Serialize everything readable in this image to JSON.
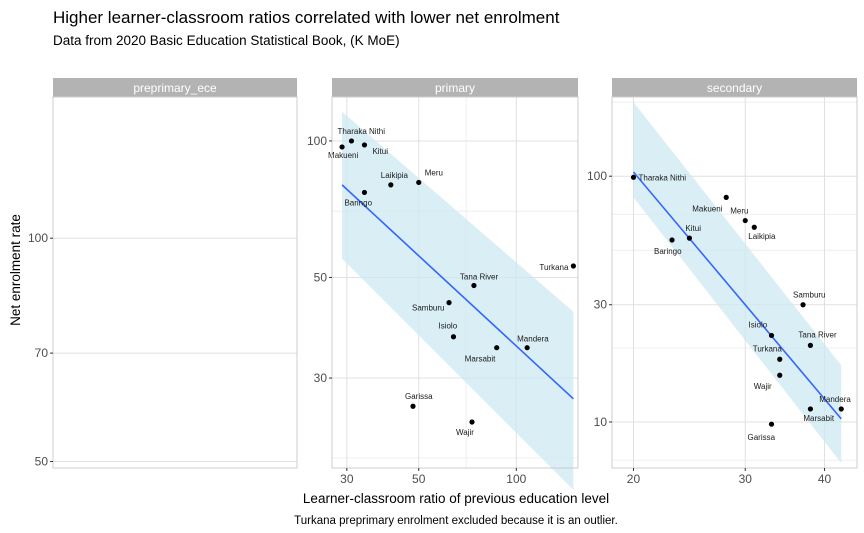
{
  "title": "Higher learner-classroom ratios correlated with lower net enrolment",
  "subtitle": "Data from 2020 Basic Education Statistical Book, (K MoE)",
  "caption": "Turkana preprimary enrolment excluded because it is an outlier.",
  "colors": {
    "fit_line": "#3366ff",
    "ribbon": "#cde8f3",
    "strip": "#b3b3b3",
    "grid": "#e0e0e0",
    "panel_border": "#cccccc",
    "point": "#000000"
  },
  "chart_data": {
    "type": "scatter",
    "xlabel": "Learner-classroom ratio of previous education level",
    "ylabel": "Net enrolment rate",
    "y_scale": "log",
    "facets": [
      {
        "name": "preprimary_ece",
        "xlim": [
          0,
          1
        ],
        "ylim": [
          49,
          155
        ],
        "x_ticks": [],
        "y_ticks": [
          50,
          70,
          100
        ],
        "points": [],
        "fit": null
      },
      {
        "name": "primary",
        "xlim": [
          27,
          155
        ],
        "ylim": [
          19,
          125
        ],
        "x_ticks": [
          30,
          50,
          100
        ],
        "y_ticks": [
          30,
          50,
          100
        ],
        "points": [
          {
            "label": "Tharaka Nithi",
            "x": 31,
            "y": 100
          },
          {
            "label": "Makueni",
            "x": 29,
            "y": 97
          },
          {
            "label": "Kitui",
            "x": 34,
            "y": 98
          },
          {
            "label": "Meru",
            "x": 50,
            "y": 81
          },
          {
            "label": "Laikipia",
            "x": 41,
            "y": 80
          },
          {
            "label": "Baringo",
            "x": 34,
            "y": 77
          },
          {
            "label": "Tana River",
            "x": 74,
            "y": 48
          },
          {
            "label": "Turkana",
            "x": 150,
            "y": 53
          },
          {
            "label": "Samburu",
            "x": 62,
            "y": 44
          },
          {
            "label": "Isiolo",
            "x": 64,
            "y": 37
          },
          {
            "label": "Mandera",
            "x": 108,
            "y": 35
          },
          {
            "label": "Marsabit",
            "x": 87,
            "y": 35
          },
          {
            "label": "Garissa",
            "x": 48,
            "y": 26
          },
          {
            "label": "Wajir",
            "x": 73,
            "y": 24
          }
        ],
        "fit": {
          "x": [
            29,
            150
          ],
          "y": [
            80,
            27
          ],
          "band_lo": [
            55,
            17
          ],
          "band_hi": [
            116,
            42
          ]
        }
      },
      {
        "name": "secondary",
        "xlim": [
          18.5,
          45
        ],
        "ylim": [
          6.5,
          210
        ],
        "x_ticks": [
          20,
          30,
          40
        ],
        "y_ticks": [
          10,
          30,
          100
        ],
        "points": [
          {
            "label": "Tharaka Nithi",
            "x": 20,
            "y": 99
          },
          {
            "label": "Makueni",
            "x": 28,
            "y": 82
          },
          {
            "label": "Meru",
            "x": 30,
            "y": 66
          },
          {
            "label": "Laikipia",
            "x": 31,
            "y": 62
          },
          {
            "label": "Kitui",
            "x": 24.5,
            "y": 56
          },
          {
            "label": "Baringo",
            "x": 23,
            "y": 55
          },
          {
            "label": "Samburu",
            "x": 37,
            "y": 30
          },
          {
            "label": "Isiolo",
            "x": 33,
            "y": 22.5
          },
          {
            "label": "Tana River",
            "x": 38,
            "y": 20.5
          },
          {
            "label": "Turkana",
            "x": 34,
            "y": 18
          },
          {
            "label": "Wajir",
            "x": 34,
            "y": 15.5
          },
          {
            "label": "Mandera",
            "x": 42.5,
            "y": 11.3
          },
          {
            "label": "Marsabit",
            "x": 38,
            "y": 11.3
          },
          {
            "label": "Garissa",
            "x": 33,
            "y": 9.8
          }
        ],
        "fit": {
          "x": [
            20,
            42.5
          ],
          "y": [
            104,
            10.3
          ],
          "band_lo": [
            82,
            6.8
          ],
          "band_hi": [
            200,
            17
          ]
        }
      }
    ]
  }
}
